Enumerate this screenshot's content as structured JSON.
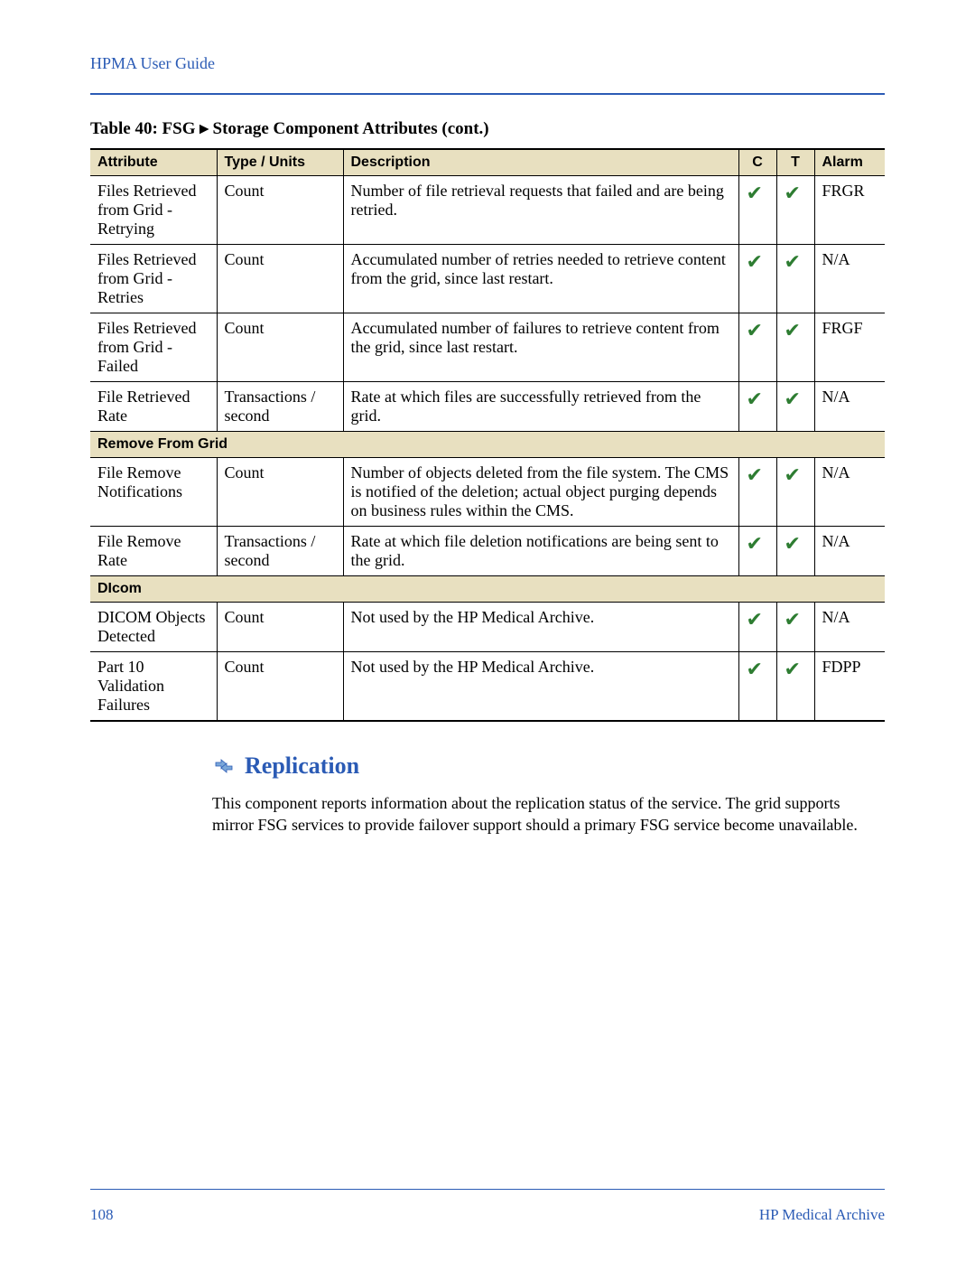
{
  "header": {
    "title": "HPMA User Guide"
  },
  "table": {
    "caption": "Table 40: FSG ▸ Storage Component Attributes (cont.)",
    "columns": {
      "attribute": "Attribute",
      "type": "Type / Units",
      "description": "Description",
      "c": "C",
      "t": "T",
      "alarm": "Alarm"
    },
    "rows": [
      {
        "kind": "data",
        "attribute": "Files Retrieved from Grid - Retrying",
        "type": "Count",
        "description": "Number of file retrieval requests that failed and are being retried.",
        "c": true,
        "t": true,
        "alarm": "FRGR"
      },
      {
        "kind": "data",
        "attribute": "Files Retrieved from Grid - Retries",
        "type": "Count",
        "description": "Accumulated number of retries needed to retrieve content from the grid, since last restart.",
        "c": true,
        "t": true,
        "alarm": "N/A"
      },
      {
        "kind": "data",
        "attribute": "Files Retrieved from Grid - Failed",
        "type": "Count",
        "description": "Accumulated number of failures to retrieve content from the grid, since last restart.",
        "c": true,
        "t": true,
        "alarm": "FRGF"
      },
      {
        "kind": "data",
        "attribute": "File Retrieved Rate",
        "type": "Transactions / second",
        "description": "Rate at which files are successfully retrieved from the grid.",
        "c": true,
        "t": true,
        "alarm": "N/A"
      },
      {
        "kind": "section",
        "label": "Remove From Grid"
      },
      {
        "kind": "data",
        "attribute": "File Remove Notifications",
        "type": "Count",
        "description": "Number of objects deleted from the file system. The CMS is notified of the deletion; actual object purging depends on business rules within the CMS.",
        "c": true,
        "t": true,
        "alarm": "N/A"
      },
      {
        "kind": "data",
        "attribute": "File Remove Rate",
        "type": "Transactions / second",
        "description": "Rate at which file deletion notifi­cations are being sent to the grid.",
        "c": true,
        "t": true,
        "alarm": "N/A"
      },
      {
        "kind": "section",
        "label": "DIcom"
      },
      {
        "kind": "data",
        "attribute": "DICOM Objects Detected",
        "type": "Count",
        "description": "Not used by the HP Medical Archive.",
        "c": true,
        "t": true,
        "alarm": "N/A"
      },
      {
        "kind": "data",
        "attribute": "Part 10 Validation Failures",
        "type": "Count",
        "description": "Not used by the HP Medical Archive.",
        "c": true,
        "t": true,
        "alarm": "FDPP"
      }
    ],
    "check_glyph": "✔",
    "check_color": "#2e7d32",
    "header_bg": "#e8e0c0"
  },
  "section": {
    "title": "Replication",
    "body": "This component reports information about the replication status of the service. The grid supports mirror FSG services to provide failover support should a primary FSG service become unavailable."
  },
  "footer": {
    "page": "108",
    "right": "HP Medical Archive"
  },
  "colors": {
    "accent": "#2b5bb5",
    "text": "#000000"
  }
}
